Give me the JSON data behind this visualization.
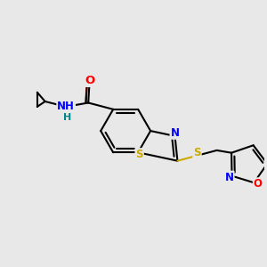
{
  "bg_color": "#e8e8e8",
  "bond_color": "#000000",
  "line_width": 1.5,
  "atom_colors": {
    "O": "#ff0000",
    "N": "#0000ff",
    "S": "#ccaa00",
    "C": "#000000",
    "H": "#008888"
  },
  "font_size": 8.5,
  "fig_width": 3.0,
  "fig_height": 3.0,
  "dpi": 100,
  "xlim": [
    0,
    10
  ],
  "ylim": [
    0,
    10
  ]
}
